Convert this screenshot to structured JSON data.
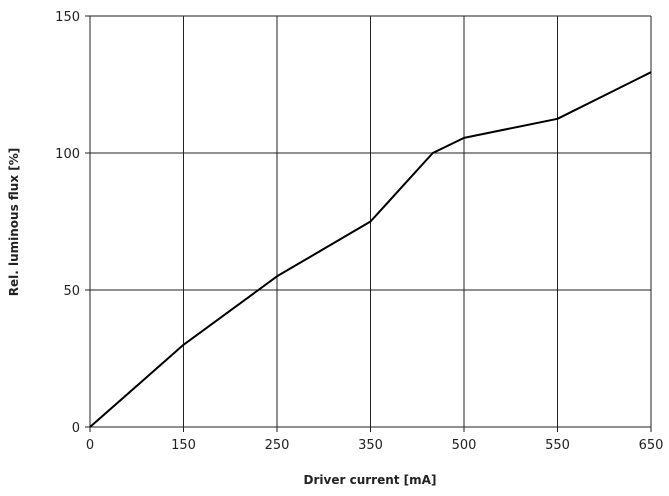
{
  "chart_data": {
    "type": "line",
    "title": "",
    "xlabel": "Driver current [mA]",
    "ylabel": "Rel. luminous flux [%]",
    "x_ticks": [
      {
        "value": 0,
        "label": "0"
      },
      {
        "value": 150,
        "label": "150"
      },
      {
        "value": 250,
        "label": "250"
      },
      {
        "value": 350,
        "label": "350"
      },
      {
        "value": 500,
        "label": "500"
      },
      {
        "value": 550,
        "label": "550"
      },
      {
        "value": 650,
        "label": "650"
      }
    ],
    "y_ticks": [
      {
        "value": 0,
        "label": "0"
      },
      {
        "value": 50,
        "label": "50"
      },
      {
        "value": 100,
        "label": "100"
      },
      {
        "value": 150,
        "label": "150"
      }
    ],
    "ylim": [
      0,
      150
    ],
    "grid": true,
    "line_color": "#000000",
    "series": [
      {
        "name": "",
        "points": [
          {
            "x": 0,
            "y": 0
          },
          {
            "x": 75,
            "y": 15
          },
          {
            "x": 150,
            "y": 30
          },
          {
            "x": 200,
            "y": 42.5
          },
          {
            "x": 250,
            "y": 55
          },
          {
            "x": 300,
            "y": 65
          },
          {
            "x": 350,
            "y": 75
          },
          {
            "x": 400,
            "y": 87.5
          },
          {
            "x": 450,
            "y": 100
          },
          {
            "x": 500,
            "y": 105.5
          },
          {
            "x": 550,
            "y": 112.5
          },
          {
            "x": 600,
            "y": 121
          },
          {
            "x": 650,
            "y": 129.5
          }
        ]
      }
    ]
  }
}
